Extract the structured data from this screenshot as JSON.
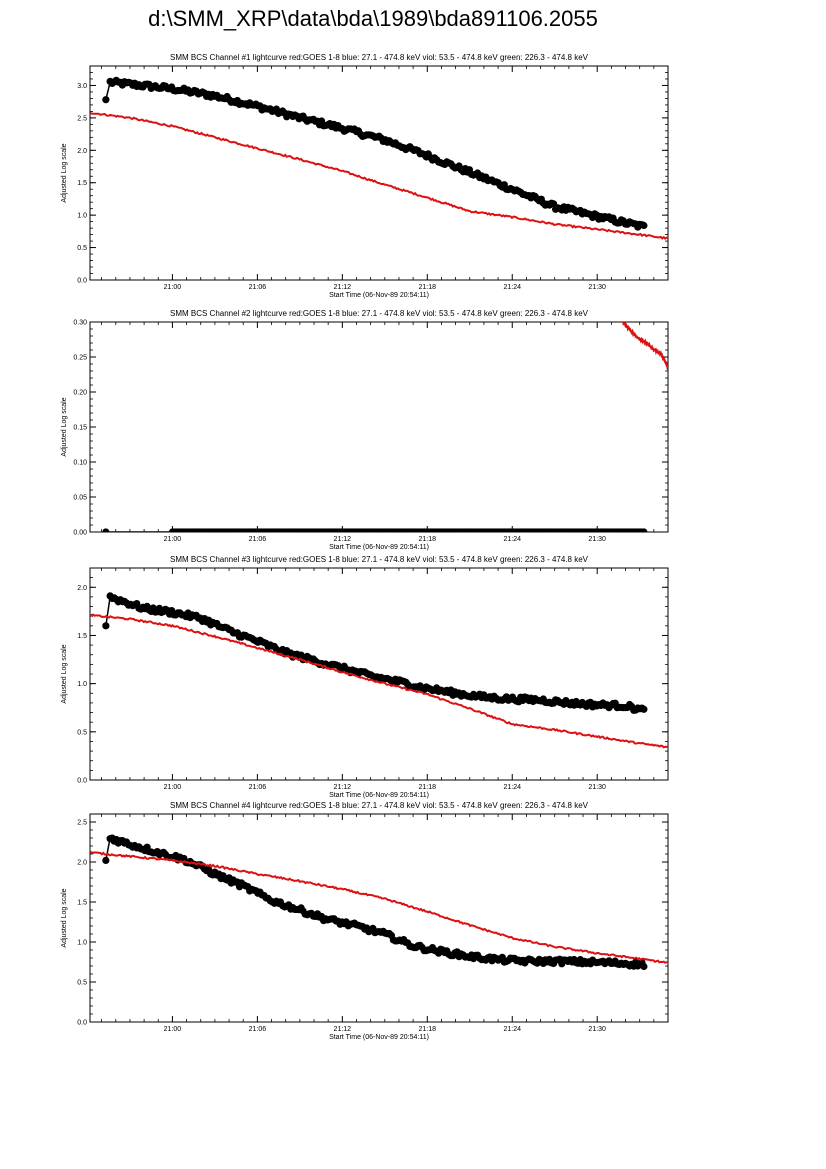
{
  "page_title": "d:\\SMM_XRP\\data\\bda\\1989\\bda891106.2055",
  "chart_data": [
    {
      "type": "scatter",
      "title": "SMM BCS Channel #1 lightcurve  red:GOES 1-8  blue: 27.1 - 474.8 keV  viol: 53.5 - 474.8 keV  green: 226.3 - 474.8 keV",
      "xlabel": "Start Time (06-Nov-89 20:54:11)",
      "ylabel": "Adjusted Log scale",
      "x_ticks": [
        "21:00",
        "21:06",
        "21:12",
        "21:18",
        "21:24",
        "21:30"
      ],
      "y_ticks": [
        "0.0",
        "0.5",
        "1.0",
        "1.5",
        "2.0",
        "2.5",
        "3.0"
      ],
      "xlim_minutes": [
        54.18,
        95.0
      ],
      "ylim": [
        0.0,
        3.3
      ],
      "series": [
        {
          "color": "#000000",
          "style": "dots",
          "x": [
            55.3,
            55.6,
            57,
            60,
            63,
            66,
            69,
            72,
            75,
            78,
            81,
            84,
            87,
            90,
            92,
            93.3
          ],
          "y": [
            2.78,
            3.05,
            3.02,
            2.95,
            2.84,
            2.68,
            2.5,
            2.34,
            2.16,
            1.92,
            1.66,
            1.4,
            1.13,
            0.98,
            0.88,
            0.82
          ]
        },
        {
          "color": "#dd1111",
          "style": "line",
          "x": [
            54.2,
            57,
            60,
            63,
            66,
            69,
            72,
            75,
            78,
            81,
            84,
            87,
            90,
            93,
            95
          ],
          "y": [
            2.58,
            2.5,
            2.37,
            2.2,
            2.03,
            1.86,
            1.68,
            1.47,
            1.27,
            1.06,
            0.97,
            0.86,
            0.78,
            0.7,
            0.64
          ]
        }
      ]
    },
    {
      "type": "scatter",
      "title": "SMM BCS Channel #2 lightcurve  red:GOES 1-8  blue: 27.1 - 474.8 keV  viol: 53.5 - 474.8 keV  green: 226.3 - 474.8 keV",
      "xlabel": "Start Time (06-Nov-89 20:54:11)",
      "ylabel": "Adjusted Log scale",
      "x_ticks": [
        "21:00",
        "21:06",
        "21:12",
        "21:18",
        "21:24",
        "21:30"
      ],
      "y_ticks": [
        "0.00",
        "0.05",
        "0.10",
        "0.15",
        "0.20",
        "0.25",
        "0.30"
      ],
      "xlim_minutes": [
        54.18,
        95.0
      ],
      "ylim": [
        0.0,
        0.3
      ],
      "series": [
        {
          "color": "#000000",
          "style": "dots",
          "x": [
            55.3,
            60,
            65,
            70,
            75,
            80,
            85,
            90,
            93.3
          ],
          "y": [
            0.0,
            0.0,
            0.0,
            0.0,
            0.0,
            0.0,
            0.0,
            0.0,
            0.0
          ]
        },
        {
          "color": "#dd1111",
          "style": "line",
          "x": [
            91.8,
            92.5,
            93.0,
            93.5,
            94.0,
            94.5,
            95.0
          ],
          "y": [
            0.3,
            0.285,
            0.275,
            0.27,
            0.26,
            0.255,
            0.235
          ]
        }
      ]
    },
    {
      "type": "scatter",
      "title": "SMM BCS Channel #3 lightcurve  red:GOES 1-8  blue: 27.1 - 474.8 keV  viol: 53.5 - 474.8 keV  green: 226.3 - 474.8 keV",
      "xlabel": "Start Time (06-Nov-89 20:54:11)",
      "ylabel": "Adjusted Log scale",
      "x_ticks": [
        "21:00",
        "21:06",
        "21:12",
        "21:18",
        "21:24",
        "21:30"
      ],
      "y_ticks": [
        "0.0",
        "0.5",
        "1.0",
        "1.5",
        "2.0"
      ],
      "xlim_minutes": [
        54.18,
        95.0
      ],
      "ylim": [
        0.0,
        2.2
      ],
      "series": [
        {
          "color": "#000000",
          "style": "dots",
          "x": [
            55.3,
            55.6,
            57,
            58,
            60,
            62,
            64,
            66,
            68,
            70,
            72,
            74,
            76,
            78,
            80,
            82,
            84,
            86,
            88,
            90,
            92,
            93.3
          ],
          "y": [
            1.6,
            1.9,
            1.83,
            1.78,
            1.74,
            1.68,
            1.55,
            1.44,
            1.32,
            1.24,
            1.16,
            1.08,
            1.02,
            0.95,
            0.9,
            0.86,
            0.84,
            0.83,
            0.8,
            0.78,
            0.77,
            0.72
          ]
        },
        {
          "color": "#dd1111",
          "style": "line",
          "x": [
            54.2,
            57,
            60,
            63,
            66,
            69,
            72,
            75,
            78,
            81,
            84,
            87,
            90,
            93,
            95
          ],
          "y": [
            1.71,
            1.67,
            1.6,
            1.49,
            1.37,
            1.25,
            1.12,
            1.0,
            0.89,
            0.74,
            0.58,
            0.52,
            0.45,
            0.38,
            0.34
          ]
        }
      ]
    },
    {
      "type": "scatter",
      "title": "SMM BCS Channel #4 lightcurve  red:GOES 1-8  blue: 27.1 - 474.8 keV  viol: 53.5 - 474.8 keV  green: 226.3 - 474.8 keV",
      "xlabel": "Start Time (06-Nov-89 20:54:11)",
      "ylabel": "Adjusted Log scale",
      "x_ticks": [
        "21:00",
        "21:06",
        "21:12",
        "21:18",
        "21:24",
        "21:30"
      ],
      "y_ticks": [
        "0.0",
        "0.5",
        "1.0",
        "1.5",
        "2.0",
        "2.5"
      ],
      "xlim_minutes": [
        54.18,
        95.0
      ],
      "ylim": [
        0.0,
        2.6
      ],
      "series": [
        {
          "color": "#000000",
          "style": "dots",
          "x": [
            55.3,
            55.6,
            57,
            59,
            61,
            63,
            65,
            67,
            69,
            71,
            73,
            75,
            77,
            79,
            81,
            83,
            85,
            87,
            89,
            91,
            93.3
          ],
          "y": [
            2.02,
            2.3,
            2.22,
            2.12,
            2.02,
            1.85,
            1.7,
            1.52,
            1.4,
            1.28,
            1.2,
            1.1,
            0.95,
            0.88,
            0.82,
            0.78,
            0.76,
            0.76,
            0.75,
            0.74,
            0.72
          ]
        },
        {
          "color": "#dd1111",
          "style": "line",
          "x": [
            54.2,
            57,
            60,
            63,
            66,
            69,
            72,
            75,
            78,
            81,
            84,
            87,
            90,
            93,
            95
          ],
          "y": [
            2.12,
            2.07,
            2.02,
            1.95,
            1.85,
            1.76,
            1.66,
            1.54,
            1.38,
            1.21,
            1.05,
            0.94,
            0.86,
            0.79,
            0.74
          ]
        }
      ]
    }
  ]
}
